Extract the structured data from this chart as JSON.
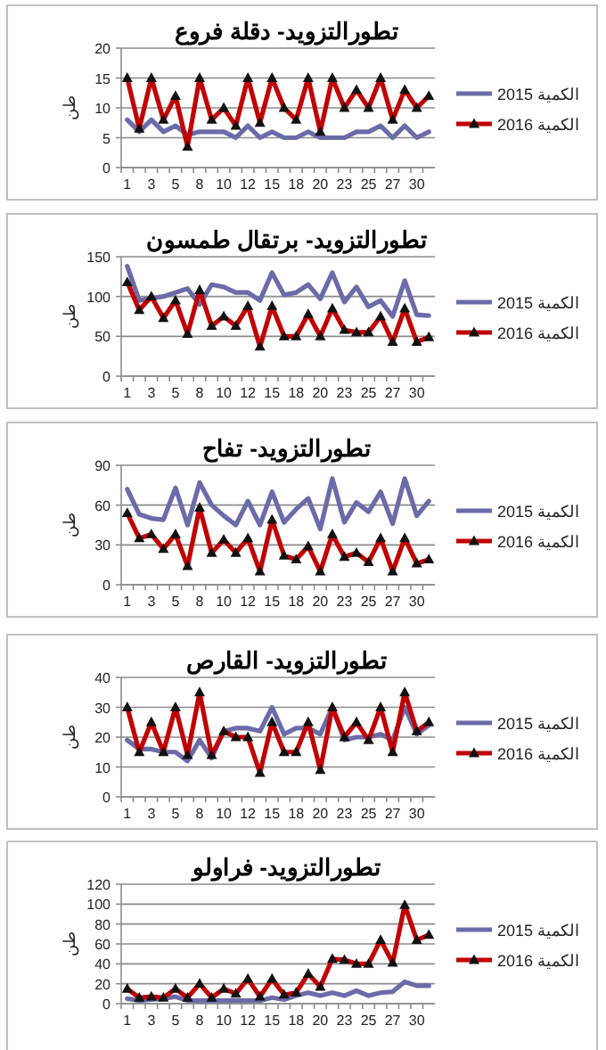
{
  "chart_data": [
    {
      "type": "line",
      "title": "تطورالتزويد- دقلة فروع",
      "ylabel": "طن",
      "categories": [
        "1",
        null,
        "3",
        null,
        "5",
        null,
        "8",
        null,
        "10",
        null,
        "12",
        null,
        "15",
        null,
        "18",
        null,
        "20",
        null,
        "23",
        null,
        "25",
        null,
        "27",
        null,
        "30",
        null
      ],
      "ylim": [
        0,
        20
      ],
      "yticks": [
        0,
        5,
        10,
        15,
        20
      ],
      "grid": "y",
      "legend": "right",
      "series": [
        {
          "name": "الكمية 2015",
          "color": "#6b6ba8",
          "marker": "none",
          "values": [
            8,
            6,
            8,
            6,
            7,
            5.5,
            6,
            6,
            6,
            5,
            7,
            5,
            6,
            5,
            5,
            6,
            5,
            5,
            5,
            6,
            6,
            7,
            5,
            7,
            5,
            6
          ]
        },
        {
          "name": "الكمية 2016",
          "color": "#c00000",
          "marker": "triangle",
          "values": [
            15,
            6.5,
            15,
            8,
            12,
            3.5,
            15,
            8,
            10,
            7,
            15,
            7.5,
            15,
            10,
            8,
            15,
            6,
            15,
            10,
            13,
            10,
            15,
            8,
            13,
            10,
            12
          ]
        }
      ]
    },
    {
      "type": "line",
      "title": "تطورالتزويد- برتقال طمسون",
      "ylabel": "طن",
      "categories": [
        "1",
        null,
        "3",
        null,
        "5",
        null,
        "8",
        null,
        "10",
        null,
        "12",
        null,
        "15",
        null,
        "18",
        null,
        "20",
        null,
        "23",
        null,
        "25",
        null,
        "27",
        null,
        "30",
        null
      ],
      "ylim": [
        0,
        150
      ],
      "yticks": [
        0,
        50,
        100,
        150
      ],
      "grid": "y",
      "legend": "right",
      "series": [
        {
          "name": "الكمية 2015",
          "color": "#6b6ba8",
          "marker": "none",
          "values": [
            138,
            95,
            98,
            100,
            105,
            110,
            90,
            115,
            112,
            105,
            105,
            95,
            130,
            102,
            105,
            115,
            97,
            130,
            93,
            112,
            87,
            95,
            75,
            120,
            77,
            76
          ]
        },
        {
          "name": "الكمية 2016",
          "color": "#c00000",
          "marker": "triangle",
          "values": [
            118,
            83,
            100,
            73,
            95,
            53,
            108,
            63,
            75,
            63,
            88,
            37,
            88,
            50,
            50,
            78,
            50,
            85,
            58,
            55,
            55,
            75,
            43,
            85,
            43,
            49
          ]
        }
      ]
    },
    {
      "type": "line",
      "title": "تطورالتزويد- تفاح",
      "ylabel": "طن",
      "categories": [
        "1",
        null,
        "3",
        null,
        "5",
        null,
        "8",
        null,
        "10",
        null,
        "12",
        null,
        "15",
        null,
        "18",
        null,
        "20",
        null,
        "23",
        null,
        "25",
        null,
        "27",
        null,
        "30",
        null
      ],
      "ylim": [
        0,
        90
      ],
      "yticks": [
        0,
        30,
        60,
        90
      ],
      "grid": "y",
      "legend": "right",
      "series": [
        {
          "name": "الكمية 2015",
          "color": "#6b6ba8",
          "marker": "none",
          "values": [
            72,
            53,
            50,
            49,
            73,
            45,
            77,
            60,
            52,
            45,
            63,
            45,
            70,
            47,
            57,
            65,
            42,
            80,
            47,
            62,
            55,
            70,
            46,
            80,
            52,
            63
          ]
        },
        {
          "name": "الكمية 2016",
          "color": "#c00000",
          "marker": "triangle",
          "values": [
            54,
            35,
            38,
            27,
            38,
            14,
            58,
            24,
            34,
            24,
            35,
            10,
            49,
            22,
            19,
            29,
            10,
            38,
            21,
            24,
            17,
            35,
            10,
            35,
            16,
            19
          ]
        }
      ]
    },
    {
      "type": "line",
      "title": "تطورالتزويد- القارص",
      "ylabel": "طن",
      "categories": [
        "1",
        null,
        "3",
        null,
        "5",
        null,
        "8",
        null,
        "10",
        null,
        "12",
        null,
        "15",
        null,
        "18",
        null,
        "20",
        null,
        "23",
        null,
        "25",
        null,
        "27",
        null,
        "30",
        null
      ],
      "ylim": [
        0,
        40
      ],
      "yticks": [
        0,
        10,
        20,
        30,
        40
      ],
      "grid": "y",
      "legend": "right",
      "series": [
        {
          "name": "الكمية 2015",
          "color": "#6b6ba8",
          "marker": "none",
          "values": [
            19,
            16,
            16,
            15,
            15,
            12,
            19,
            13,
            22,
            23,
            23,
            22,
            30,
            21,
            23,
            23,
            21,
            30,
            19,
            20,
            20,
            21,
            19,
            30,
            21,
            24
          ]
        },
        {
          "name": "الكمية 2016",
          "color": "#c00000",
          "marker": "triangle",
          "values": [
            30,
            15,
            25,
            15,
            30,
            14,
            35,
            14,
            22,
            20,
            20,
            8,
            25,
            15,
            15,
            25,
            9,
            30,
            20,
            25,
            19,
            30,
            15,
            35,
            22,
            25
          ]
        }
      ]
    },
    {
      "type": "line",
      "title": "تطورالتزويد- فراولو",
      "ylabel": "طن",
      "categories": [
        "1",
        null,
        "3",
        null,
        "5",
        null,
        "8",
        null,
        "10",
        null,
        "12",
        null,
        "15",
        null,
        "18",
        null,
        "20",
        null,
        "23",
        null,
        "25",
        null,
        "27",
        null,
        "30",
        null
      ],
      "ylim": [
        0,
        120
      ],
      "yticks": [
        0,
        20,
        40,
        60,
        80,
        100,
        120
      ],
      "grid": "y",
      "legend": "right",
      "series": [
        {
          "name": "الكمية 2015",
          "color": "#6b6ba8",
          "marker": "none",
          "values": [
            5,
            3,
            4,
            5,
            7,
            3,
            3,
            3,
            3,
            3,
            3,
            3,
            6,
            4,
            8,
            11,
            8,
            11,
            8,
            13,
            8,
            11,
            12,
            22,
            18,
            18
          ]
        },
        {
          "name": "الكمية 2016",
          "color": "#c00000",
          "marker": "triangle",
          "values": [
            15,
            6,
            7,
            6,
            15,
            6,
            20,
            6,
            15,
            10,
            25,
            7,
            25,
            9,
            11,
            30,
            17,
            45,
            44,
            40,
            40,
            64,
            41,
            99,
            64,
            69
          ]
        }
      ]
    }
  ]
}
